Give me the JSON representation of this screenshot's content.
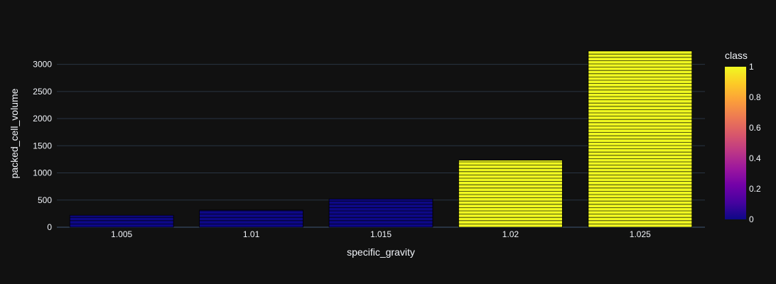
{
  "chart_data": {
    "type": "bar",
    "xlabel": "specific_gravity",
    "ylabel": "packed_cell_volume",
    "categories": [
      "1.005",
      "1.01",
      "1.015",
      "1.02",
      "1.025"
    ],
    "values": [
      220,
      315,
      520,
      1235,
      3245
    ],
    "class_values": [
      0,
      0,
      0,
      1,
      1
    ],
    "ylim": [
      0,
      3400
    ],
    "yticks": [
      0,
      500,
      1000,
      1500,
      2000,
      2500,
      3000
    ],
    "grid": true,
    "stacked_segment_lines": true,
    "colorbar": {
      "title": "class",
      "range": [
        0,
        1
      ],
      "ticks": [
        "0",
        "0.2",
        "0.4",
        "0.6",
        "0.8",
        "1"
      ],
      "colorscale": [
        "#0d0887",
        "#46039f",
        "#7201a8",
        "#9c179e",
        "#bd3786",
        "#d8576b",
        "#ed7953",
        "#fb9f3a",
        "#fdca26",
        "#f0f921"
      ]
    },
    "colors": {
      "background": "#111111",
      "grid": "#283442",
      "text": "#f2f5fa",
      "segment_line": "#000000"
    }
  }
}
